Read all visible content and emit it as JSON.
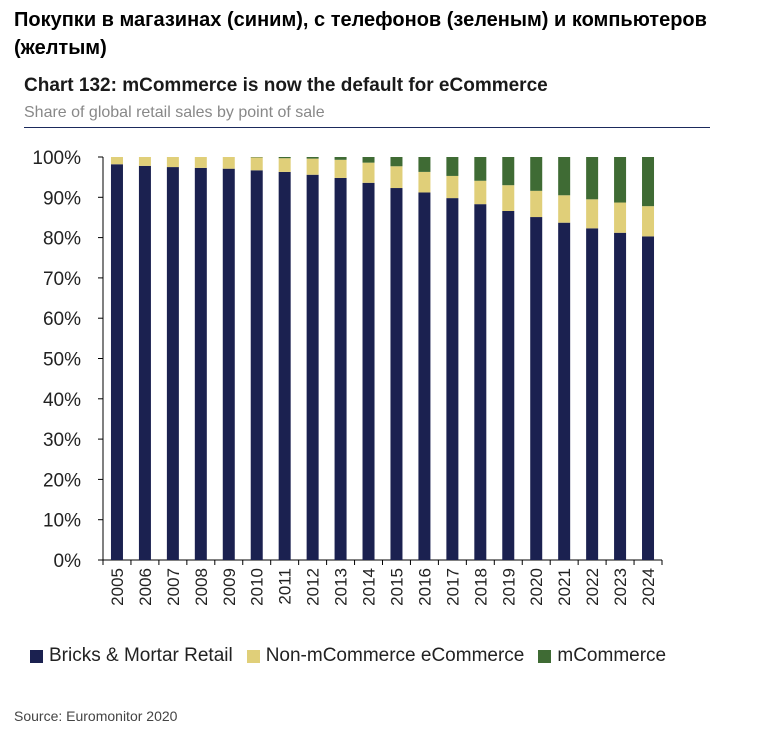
{
  "heading": "Покупки в магазинах (синим), с телефонов (зеленым) и компьютеров (желтым)",
  "source": "Source: Euromonitor 2020",
  "colors": {
    "bricks": "#1b2150",
    "non_mcommerce": "#e0cf79",
    "mcommerce": "#3f6b34",
    "axis": "#000000"
  },
  "chart_data": {
    "type": "bar",
    "stacked": true,
    "title": "Chart 132: mCommerce is now the default for eCommerce",
    "subtitle": "Share of global retail sales by point of sale",
    "xlabel": "",
    "ylabel": "",
    "ylim": [
      0,
      100
    ],
    "yticks": [
      "0%",
      "10%",
      "20%",
      "30%",
      "40%",
      "50%",
      "60%",
      "70%",
      "80%",
      "90%",
      "100%"
    ],
    "categories": [
      "2005",
      "2006",
      "2007",
      "2008",
      "2009",
      "2010",
      "2011",
      "2012",
      "2013",
      "2014",
      "2015",
      "2016",
      "2017",
      "2018",
      "2019",
      "2020",
      "2021",
      "2022",
      "2023",
      "2024"
    ],
    "series": [
      {
        "name": "Bricks & Mortar Retail",
        "values": [
          98.2,
          97.8,
          97.5,
          97.3,
          97.1,
          96.7,
          96.3,
          95.6,
          94.8,
          93.6,
          92.3,
          91.2,
          89.8,
          88.3,
          86.6,
          85.1,
          83.7,
          82.3,
          81.2,
          80.3
        ]
      },
      {
        "name": "Non-mCommerce eCommerce",
        "values": [
          1.8,
          2.2,
          2.5,
          2.7,
          2.9,
          3.2,
          3.4,
          4.0,
          4.5,
          5.0,
          5.4,
          5.1,
          5.5,
          5.8,
          6.4,
          6.5,
          6.8,
          7.2,
          7.5,
          7.5
        ]
      },
      {
        "name": "mCommerce",
        "values": [
          0.0,
          0.0,
          0.0,
          0.0,
          0.0,
          0.1,
          0.3,
          0.4,
          0.7,
          1.4,
          2.3,
          3.7,
          4.7,
          5.9,
          7.0,
          8.4,
          9.5,
          10.5,
          11.3,
          12.2
        ]
      }
    ],
    "legend_position": "bottom",
    "grid": false
  }
}
